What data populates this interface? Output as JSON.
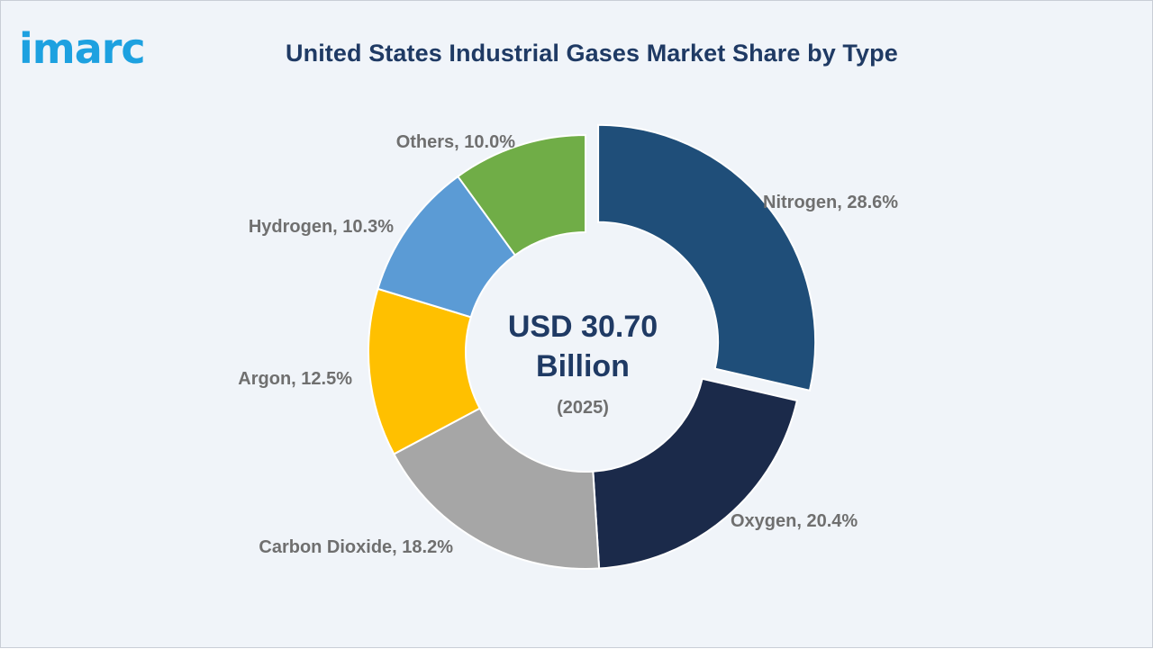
{
  "brand": {
    "logo_text": "imarc"
  },
  "chart_data": {
    "type": "pie",
    "title": "United States Industrial Gases Market Share by Type",
    "center_label": {
      "value_line1": "USD 30.70",
      "value_line2": "Billion",
      "year": "(2025)"
    },
    "slices": [
      {
        "name": "Nitrogen",
        "value": 28.6,
        "label": "Nitrogen, 28.6%",
        "color": "#1f4e79",
        "exploded": true
      },
      {
        "name": "Oxygen",
        "value": 20.4,
        "label": "Oxygen, 20.4%",
        "color": "#1b2a4a",
        "exploded": false
      },
      {
        "name": "Carbon Dioxide",
        "value": 18.2,
        "label": "Carbon Dioxide, 18.2%",
        "color": "#a6a6a6",
        "exploded": false
      },
      {
        "name": "Argon",
        "value": 12.5,
        "label": "Argon, 12.5%",
        "color": "#ffc000",
        "exploded": false
      },
      {
        "name": "Hydrogen",
        "value": 10.3,
        "label": "Hydrogen, 10.3%",
        "color": "#5b9bd5",
        "exploded": false
      },
      {
        "name": "Others",
        "value": 10.0,
        "label": "Others, 10.0%",
        "color": "#70ad47",
        "exploded": false
      }
    ]
  }
}
